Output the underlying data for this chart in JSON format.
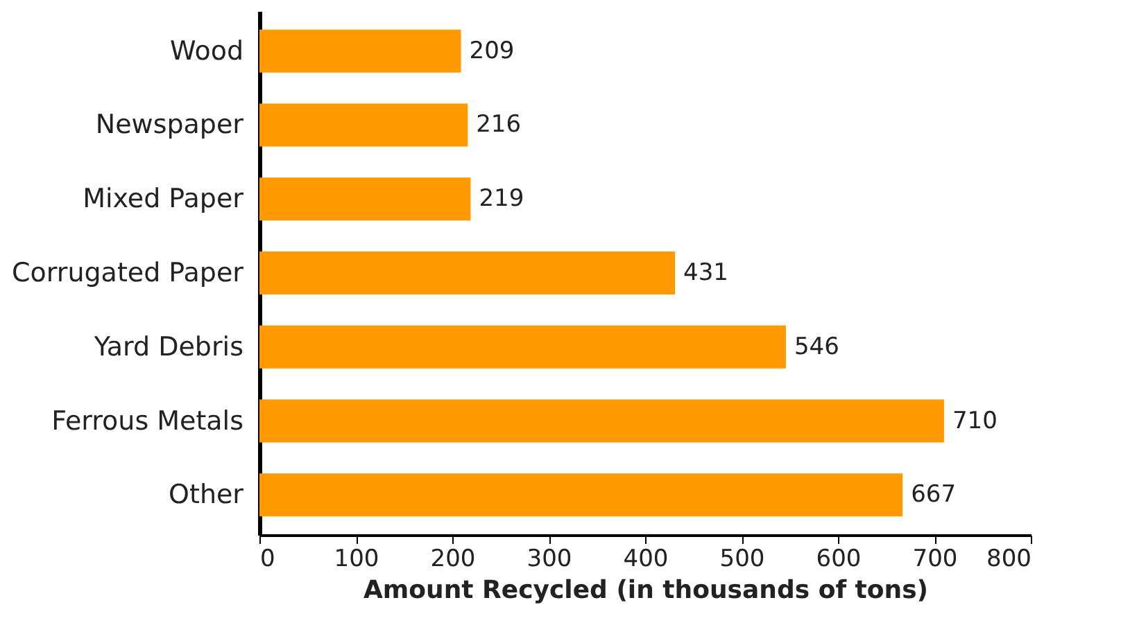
{
  "chart_data": {
    "type": "bar",
    "orientation": "horizontal",
    "xlabel": "Amount Recycled (in thousands of tons)",
    "categories": [
      "Wood",
      "Newspaper",
      "Mixed Paper",
      "Corrugated Paper",
      "Yard Debris",
      "Ferrous Metals",
      "Other"
    ],
    "values": [
      209,
      216,
      219,
      431,
      546,
      710,
      667
    ],
    "color": "#ff9900",
    "xlim": [
      0,
      800
    ],
    "xticks": [
      0,
      100,
      200,
      300,
      400,
      500,
      600,
      700,
      800
    ],
    "data_labels": true,
    "grid": false
  }
}
